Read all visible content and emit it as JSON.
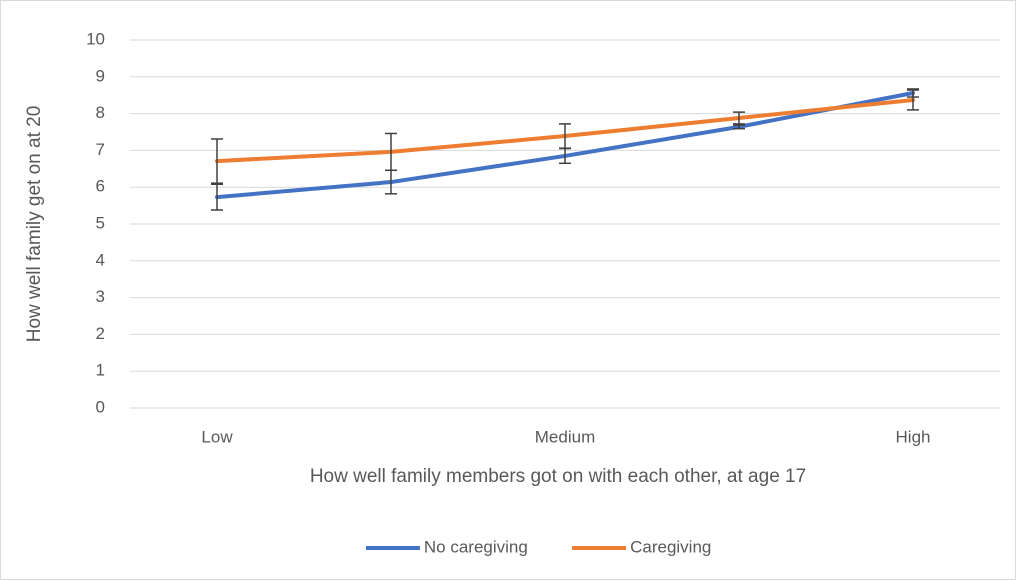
{
  "chart_data": {
    "type": "line",
    "x_label": "How well family members got on with each other, at age 17",
    "y_label": "How well family get on at 20",
    "categories": [
      "Low",
      null,
      "Medium",
      null,
      "High"
    ],
    "series": [
      {
        "name": "No caregiving",
        "color": "#4472c4",
        "values": [
          5.73,
          6.14,
          6.85,
          7.64,
          8.56
        ],
        "errors": [
          0.35,
          0.32,
          0.2,
          0.05,
          0.11
        ]
      },
      {
        "name": "Caregiving",
        "color": "#ed7d31",
        "values": [
          6.71,
          6.96,
          7.39,
          7.88,
          8.37
        ],
        "errors": [
          0.6,
          0.5,
          0.33,
          0.16,
          0.27
        ]
      }
    ],
    "ylim": [
      0,
      10
    ],
    "yticks": [
      0,
      1,
      2,
      3,
      4,
      5,
      6,
      7,
      8,
      9,
      10
    ],
    "grid": true,
    "legend": "bottom"
  }
}
